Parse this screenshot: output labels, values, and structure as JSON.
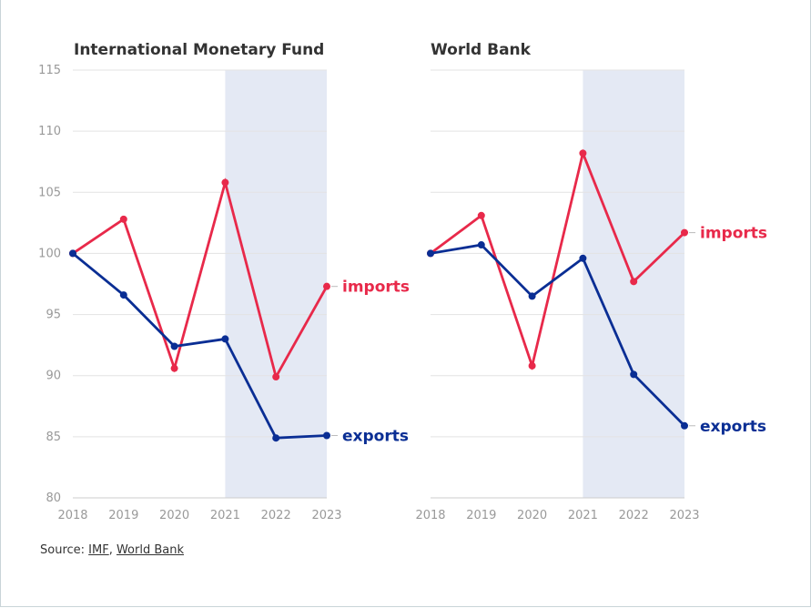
{
  "chart_data": [
    {
      "type": "line",
      "title": "International Monetary Fund",
      "x": [
        "2018",
        "2019",
        "2020",
        "2021",
        "2022",
        "2023"
      ],
      "yticks": [
        "80",
        "85",
        "90",
        "95",
        "100",
        "105",
        "110",
        "115"
      ],
      "ylim": [
        80,
        115
      ],
      "grid": true,
      "highlight_range": [
        "2021",
        "2023"
      ],
      "series": [
        {
          "name": "imports",
          "values": [
            100,
            102.8,
            90.6,
            105.8,
            89.9,
            97.3
          ],
          "color": "#e8294a"
        },
        {
          "name": "exports",
          "values": [
            100,
            96.6,
            92.4,
            93.0,
            84.9,
            85.1
          ],
          "color": "#0a2e94"
        }
      ]
    },
    {
      "type": "line",
      "title": "World Bank",
      "x": [
        "2018",
        "2019",
        "2020",
        "2021",
        "2022",
        "2023"
      ],
      "ylim": [
        80,
        115
      ],
      "grid": true,
      "highlight_range": [
        "2021",
        "2023"
      ],
      "series": [
        {
          "name": "imports",
          "values": [
            100,
            103.1,
            90.8,
            108.2,
            97.7,
            101.7
          ],
          "color": "#e8294a"
        },
        {
          "name": "exports",
          "values": [
            100,
            100.7,
            96.5,
            99.6,
            90.1,
            85.9
          ],
          "color": "#0a2e94"
        }
      ]
    }
  ],
  "source": {
    "prefix": "Source: ",
    "links": [
      "IMF",
      "World Bank"
    ],
    "separator": ", "
  },
  "colors": {
    "highlight": "#e4e9f4",
    "grid": "#e3e3e3",
    "axis": "#cccccc"
  }
}
